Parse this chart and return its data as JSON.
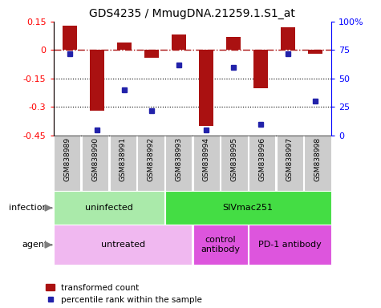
{
  "title": "GDS4235 / MmugDNA.21259.1.S1_at",
  "samples": [
    "GSM838989",
    "GSM838990",
    "GSM838991",
    "GSM838992",
    "GSM838993",
    "GSM838994",
    "GSM838995",
    "GSM838996",
    "GSM838997",
    "GSM838998"
  ],
  "transformed_count": [
    0.13,
    -0.32,
    0.04,
    -0.04,
    0.08,
    -0.4,
    0.07,
    -0.2,
    0.12,
    -0.02
  ],
  "percentile_rank": [
    72,
    5,
    40,
    22,
    62,
    5,
    60,
    10,
    72,
    30
  ],
  "ylim": [
    -0.45,
    0.15
  ],
  "y2lim": [
    0,
    100
  ],
  "yticks": [
    0.15,
    0.0,
    -0.15,
    -0.3,
    -0.45
  ],
  "y2ticks": [
    100,
    75,
    50,
    25,
    0
  ],
  "y2ticklabels": [
    "100%",
    "75",
    "50",
    "25",
    "0"
  ],
  "hline_y": 0.0,
  "dotted_lines": [
    -0.15,
    -0.3
  ],
  "bar_color": "#aa1111",
  "dot_color": "#2222aa",
  "infection_groups": [
    {
      "label": "uninfected",
      "start": 0,
      "end": 3,
      "color": "#aaeaaa"
    },
    {
      "label": "SIVmac251",
      "start": 4,
      "end": 9,
      "color": "#44dd44"
    }
  ],
  "agent_groups": [
    {
      "label": "untreated",
      "start": 0,
      "end": 4,
      "color": "#f0b8f0"
    },
    {
      "label": "control\nantibody",
      "start": 5,
      "end": 6,
      "color": "#dd55dd"
    },
    {
      "label": "PD-1 antibody",
      "start": 7,
      "end": 9,
      "color": "#dd55dd"
    }
  ],
  "infection_label": "infection",
  "agent_label": "agent",
  "legend_bar_label": "transformed count",
  "legend_dot_label": "percentile rank within the sample",
  "bg_color": "#ffffff",
  "sample_bg_color": "#cccccc"
}
